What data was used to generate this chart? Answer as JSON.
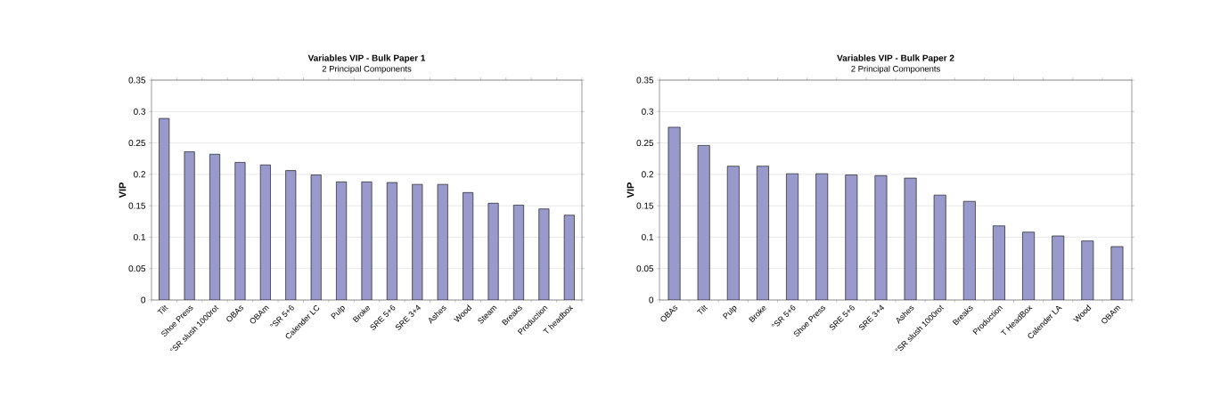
{
  "chart_data": [
    {
      "type": "bar",
      "title": "Variables VIP - Bulk Paper 1",
      "subtitle": "2 Principal Components",
      "ylabel": "VIP",
      "color": "#9999cc",
      "grid": "y",
      "categories": [
        "Tilt",
        "Shoe Press",
        "°SR slush 1000rot",
        "OBAs",
        "OBAm",
        "°SR 5+6",
        "Calender LC",
        "Pulp",
        "Broke",
        "SRE 5+6",
        "SRE 3+4",
        "Ashes",
        "Wood",
        "Steam",
        "Breaks",
        "Production",
        "T headbox"
      ],
      "values": [
        0.289,
        0.236,
        0.232,
        0.219,
        0.215,
        0.206,
        0.199,
        0.188,
        0.188,
        0.187,
        0.184,
        0.184,
        0.171,
        0.154,
        0.151,
        0.145,
        0.135
      ],
      "ylim": [
        0,
        0.35
      ],
      "yticks": [
        0,
        0.05,
        0.1,
        0.15,
        0.2,
        0.25,
        0.3,
        0.35
      ]
    },
    {
      "type": "bar",
      "title": "Variables VIP - Bulk Paper 2",
      "subtitle": "2 Principal Components",
      "ylabel": "VIP",
      "color": "#9999cc",
      "grid": "y",
      "categories": [
        "OBAs",
        "Tilt",
        "Pulp",
        "Broke",
        "°SR 5+6",
        "Shoe Press",
        "SRE 5+6",
        "SRE 3+4",
        "Ashes",
        "°SR slush 1000rot",
        "Breaks",
        "Production",
        "T HeadBox",
        "Calender LA",
        "Wood",
        "OBAm"
      ],
      "values": [
        0.275,
        0.246,
        0.213,
        0.213,
        0.201,
        0.201,
        0.199,
        0.198,
        0.194,
        0.167,
        0.157,
        0.118,
        0.108,
        0.102,
        0.094,
        0.085
      ],
      "ylim": [
        0,
        0.35
      ],
      "yticks": [
        0,
        0.05,
        0.1,
        0.15,
        0.2,
        0.25,
        0.3,
        0.35
      ]
    }
  ]
}
